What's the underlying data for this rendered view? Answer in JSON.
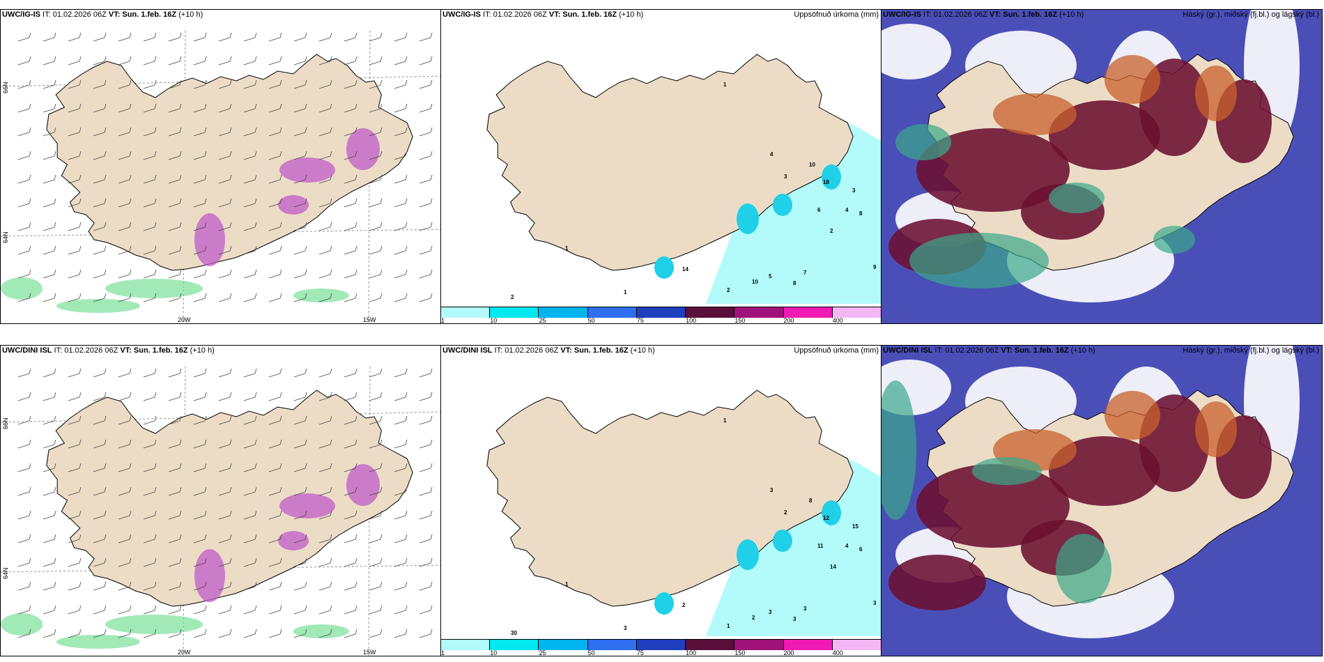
{
  "rows": [
    {
      "left": {
        "header_model": "UWC/IG-IS",
        "header_rest": " IT: 01.02.2026 06Z ",
        "header_vt": "VT: Sun. 1.feb. 16Z",
        "header_lead": " (+10 h)"
      },
      "middle": {
        "header_model": "UWC/IG-IS",
        "header_rest": " IT: 01.02.2026 06Z ",
        "header_vt": "VT: Sun. 1.feb. 16Z",
        "header_lead": " (+10 h)",
        "right_title": "Uppsöfnuð úrkoma (mm)"
      },
      "right": {
        "header_model": "UWC/IG-IS",
        "header_rest": " IT: 01.02.2026 06Z ",
        "header_vt": "VT: Sun. 1.feb. 16Z",
        "header_lead": " (+10 h)",
        "right_title": "Háský (gr.), miðský (fj.bl.) og lágský (bl.)"
      }
    },
    {
      "left": {
        "header_model": "UWC/DINI ISL",
        "header_rest": " IT: 01.02.2026 06Z ",
        "header_vt": "VT: Sun. 1.feb. 16Z",
        "header_lead": " (+10 h)"
      },
      "middle": {
        "header_model": "UWC/DINI ISL",
        "header_rest": " IT: 01.02.2026 06Z ",
        "header_vt": "VT: Sun. 1.feb. 16Z",
        "header_lead": " (+10 h)",
        "right_title": "Uppsöfnuð úrkoma (mm)"
      },
      "right": {
        "header_model": "UWC/DINI ISL",
        "header_rest": " IT: 01.02.2026 06Z ",
        "header_vt": "VT: Sun. 1.feb. 16Z",
        "header_lead": " (+10 h)",
        "right_title": "Háský (gr.), miðský (fj.bl.) og lágský (bl.)"
      }
    }
  ],
  "axis_labels": {
    "lat_66": "66N",
    "lat_64": "64N",
    "lon_20w": "20W",
    "lon_15w": "15W"
  },
  "colorbar": {
    "labels": [
      "1",
      "10",
      "25",
      "50",
      "75",
      "100",
      "150",
      "200",
      "400"
    ],
    "colors": [
      "#b3fbfb",
      "#00e8f0",
      "#00b4f0",
      "#2f6ff0",
      "#1f3fbf",
      "#5a0f3a",
      "#a0127a",
      "#f01bb4",
      "#f5b6f5"
    ]
  },
  "precip_values_top": [
    "1",
    "1",
    "4",
    "3",
    "10",
    "18",
    "3",
    "6",
    "4",
    "2",
    "8",
    "9",
    "7",
    "5",
    "8",
    "10",
    "2",
    "1",
    "2",
    "14"
  ],
  "precip_values_bottom": [
    "1",
    "1",
    "3",
    "2",
    "8",
    "12",
    "15",
    "11",
    "4",
    "14",
    "6",
    "3",
    "3",
    "3",
    "3",
    "2",
    "1",
    "3",
    "30",
    "2"
  ],
  "colors": {
    "land": "#ecdcc6",
    "precip_light": "#b3fbfb",
    "precip_mid": "#20d0e8",
    "cloud_high": "#6b1030",
    "cloud_mid": "#c8602c",
    "cloud_low": "#4a4fb8",
    "green": "#7adf9a",
    "magenta": "#c05cc8"
  }
}
